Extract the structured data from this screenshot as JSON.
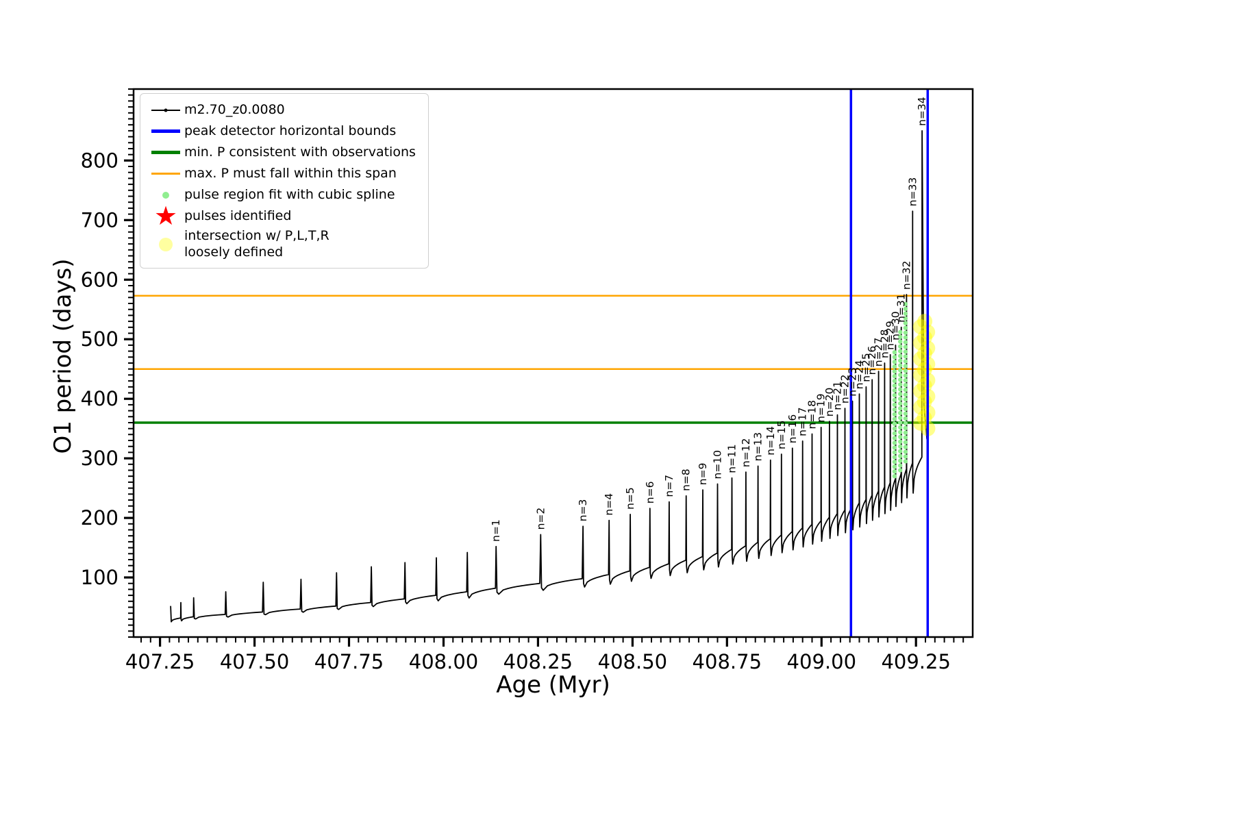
{
  "legend": {
    "items": [
      {
        "label": "m2.70_z0.0080",
        "marker": "line-dot",
        "color": "#000000"
      },
      {
        "label": "peak detector horizontal bounds",
        "marker": "thick-line",
        "color": "#0000ff"
      },
      {
        "label": "min. P consistent with observations",
        "marker": "thick-line",
        "color": "#008000"
      },
      {
        "label": "max. P must fall within this span",
        "marker": "line",
        "color": "#ffa500"
      },
      {
        "label": "pulse region fit with cubic spline",
        "marker": "dot-small",
        "color": "#90ee90"
      },
      {
        "label": "pulses identified",
        "marker": "star",
        "color": "#ff0000"
      },
      {
        "label": "intersection w/ P,L,T,R\nloosely defined",
        "marker": "dot-big",
        "color": "#ffffa0"
      }
    ]
  },
  "chart_data": {
    "type": "line",
    "title": "",
    "xlabel": "Age (Myr)",
    "ylabel": "O1 period (days)",
    "xlim": [
      407.18,
      409.4
    ],
    "ylim": [
      0,
      920
    ],
    "xticks": [
      407.25,
      407.5,
      407.75,
      408.0,
      408.25,
      408.5,
      408.75,
      409.0,
      409.25
    ],
    "yticks": [
      100,
      200,
      300,
      400,
      500,
      600,
      700,
      800
    ],
    "x_minor_step": 0.025,
    "y_minor_step": 10,
    "series": {
      "label": "m2.70_z0.0080",
      "color": "#000000"
    },
    "vlines": {
      "label": "peak detector horizontal bounds",
      "color": "#0000ff",
      "x": [
        409.078,
        409.281
      ]
    },
    "hline_min_P": {
      "label": "min. P consistent with observations",
      "color": "#008000",
      "y": 360
    },
    "hlines_max_P_span": {
      "label": "max. P must fall within this span",
      "color": "#ffa500",
      "y": [
        450,
        573
      ]
    },
    "green_dots": {
      "label": "pulse region fit with cubic spline",
      "color": "#90ee90",
      "columns": [
        {
          "x": 409.196,
          "y_min": 270,
          "y_max": 485
        },
        {
          "x": 409.211,
          "y_min": 280,
          "y_max": 515
        },
        {
          "x": 409.225,
          "y_min": 295,
          "y_max": 560
        }
      ]
    },
    "yellow_blob": {
      "label": "intersection w/ P,L,T,R loosely defined",
      "color": "#ffff00",
      "x": 409.272,
      "y_min": 350,
      "y_max": 535
    },
    "pulses": [
      {
        "x": 407.305,
        "peak": 58,
        "base": 32,
        "label": null
      },
      {
        "x": 407.339,
        "peak": 66,
        "base": 34,
        "label": null
      },
      {
        "x": 407.424,
        "peak": 76,
        "base": 38,
        "label": null
      },
      {
        "x": 407.523,
        "peak": 92,
        "base": 42,
        "label": null
      },
      {
        "x": 407.623,
        "peak": 97,
        "base": 47,
        "label": null
      },
      {
        "x": 407.717,
        "peak": 108,
        "base": 52,
        "label": null
      },
      {
        "x": 407.809,
        "peak": 118,
        "base": 58,
        "label": null
      },
      {
        "x": 407.898,
        "peak": 125,
        "base": 64,
        "label": null
      },
      {
        "x": 407.981,
        "peak": 133,
        "base": 70,
        "label": null
      },
      {
        "x": 408.063,
        "peak": 142,
        "base": 76,
        "label": null
      },
      {
        "x": 408.139,
        "peak": 152,
        "base": 82,
        "label": "n=1"
      },
      {
        "x": 408.257,
        "peak": 172,
        "base": 90,
        "label": "n=2"
      },
      {
        "x": 408.369,
        "peak": 186,
        "base": 98,
        "label": "n=3"
      },
      {
        "x": 408.438,
        "peak": 196,
        "base": 105,
        "label": "n=4"
      },
      {
        "x": 408.494,
        "peak": 206,
        "base": 111,
        "label": "n=5"
      },
      {
        "x": 408.546,
        "peak": 216,
        "base": 117,
        "label": "n=6"
      },
      {
        "x": 408.597,
        "peak": 227,
        "base": 123,
        "label": "n=7"
      },
      {
        "x": 408.642,
        "peak": 237,
        "base": 129,
        "label": "n=8"
      },
      {
        "x": 408.686,
        "peak": 247,
        "base": 135,
        "label": "n=9"
      },
      {
        "x": 408.725,
        "peak": 257,
        "base": 141,
        "label": "n=10"
      },
      {
        "x": 408.763,
        "peak": 267,
        "base": 147,
        "label": "n=11"
      },
      {
        "x": 408.8,
        "peak": 277,
        "base": 153,
        "label": "n=12"
      },
      {
        "x": 408.832,
        "peak": 287,
        "base": 159,
        "label": "n=13"
      },
      {
        "x": 408.865,
        "peak": 297,
        "base": 165,
        "label": "n=14"
      },
      {
        "x": 408.894,
        "peak": 307,
        "base": 171,
        "label": "n=15"
      },
      {
        "x": 408.923,
        "peak": 317,
        "base": 177,
        "label": "n=16"
      },
      {
        "x": 408.95,
        "peak": 329,
        "base": 183,
        "label": "n=17"
      },
      {
        "x": 408.975,
        "peak": 341,
        "base": 189,
        "label": "n=18"
      },
      {
        "x": 408.999,
        "peak": 352,
        "base": 195,
        "label": "n=19"
      },
      {
        "x": 409.021,
        "peak": 362,
        "base": 201,
        "label": "n=20"
      },
      {
        "x": 409.042,
        "peak": 373,
        "base": 207,
        "label": "n=21"
      },
      {
        "x": 409.062,
        "peak": 384,
        "base": 213,
        "label": "n=22"
      },
      {
        "x": 409.082,
        "peak": 396,
        "base": 219,
        "label": "n=23"
      },
      {
        "x": 409.1,
        "peak": 408,
        "base": 225,
        "label": "n=24"
      },
      {
        "x": 409.118,
        "peak": 420,
        "base": 231,
        "label": "n=25"
      },
      {
        "x": 409.134,
        "peak": 432,
        "base": 238,
        "label": "n=26"
      },
      {
        "x": 409.151,
        "peak": 446,
        "base": 245,
        "label": "n=27"
      },
      {
        "x": 409.167,
        "peak": 460,
        "base": 252,
        "label": "n=28"
      },
      {
        "x": 409.182,
        "peak": 474,
        "base": 259,
        "label": "n=29"
      },
      {
        "x": 409.196,
        "peak": 490,
        "base": 266,
        "label": "n=30"
      },
      {
        "x": 409.211,
        "peak": 520,
        "base": 274,
        "label": "n=31"
      },
      {
        "x": 409.225,
        "peak": 575,
        "base": 282,
        "label": "n=32"
      },
      {
        "x": 409.241,
        "peak": 715,
        "base": 292,
        "label": "n=33"
      },
      {
        "x": 409.266,
        "peak": 850,
        "base": 302,
        "label": "n=34"
      }
    ]
  }
}
